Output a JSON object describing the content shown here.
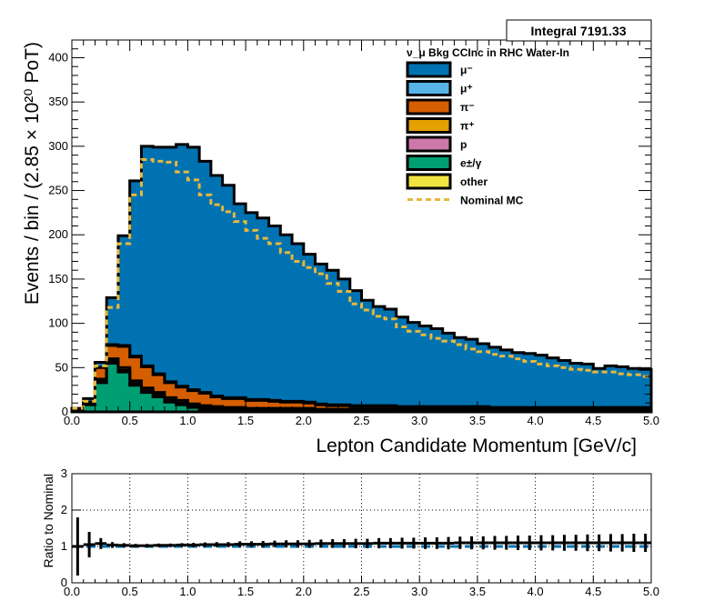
{
  "stats_box": {
    "text": "Integral 7191.33"
  },
  "chart_data": [
    {
      "type": "area",
      "title": "",
      "xlabel": "Lepton Candidate Momentum [GeV/c]",
      "ylabel": "Events / bin / (2.85  × 10²⁰ PoT)",
      "xlim": [
        0,
        5.0
      ],
      "ylim": [
        0,
        420
      ],
      "x_ticks": [
        "0.0",
        "0.5",
        "1.0",
        "1.5",
        "2.0",
        "2.5",
        "3.0",
        "3.5",
        "4.0",
        "4.5",
        "5.0"
      ],
      "y_ticks": [
        "0",
        "50",
        "100",
        "150",
        "200",
        "250",
        "300",
        "350",
        "400"
      ],
      "grid": false,
      "legend_position": "top-right",
      "legend_title": "ν_μ Bkg CCInc in RHC Water-In",
      "bin_width": 0.1,
      "x": [
        0.0,
        0.1,
        0.2,
        0.3,
        0.4,
        0.5,
        0.6,
        0.7,
        0.8,
        0.9,
        1.0,
        1.1,
        1.2,
        1.3,
        1.4,
        1.5,
        1.6,
        1.7,
        1.8,
        1.9,
        2.0,
        2.1,
        2.2,
        2.3,
        2.4,
        2.5,
        2.6,
        2.7,
        2.8,
        2.9,
        3.0,
        3.1,
        3.2,
        3.3,
        3.4,
        3.5,
        3.6,
        3.7,
        3.8,
        3.9,
        4.0,
        4.1,
        4.2,
        4.3,
        4.4,
        4.5,
        4.6,
        4.7,
        4.8,
        4.9
      ],
      "series": [
        {
          "name": "e±/γ",
          "color": "#009e73",
          "values": [
            1,
            8,
            33,
            55,
            45,
            30,
            22,
            17,
            11,
            8,
            5,
            3,
            2,
            1,
            1,
            0,
            0,
            0,
            0,
            0,
            0,
            0,
            0,
            0,
            0,
            0,
            0,
            0,
            0,
            0,
            0,
            0,
            0,
            0,
            0,
            0,
            0,
            0,
            0,
            0,
            0,
            0,
            0,
            0,
            0,
            0,
            0,
            0,
            0,
            0
          ]
        },
        {
          "name": "other",
          "color": "#f0e442",
          "values": [
            0,
            0,
            1,
            1,
            1,
            1,
            1,
            1,
            1,
            1,
            1,
            1,
            1,
            1,
            1,
            1,
            1,
            1,
            1,
            1,
            1,
            1,
            1,
            1,
            1,
            1,
            1,
            1,
            1,
            1,
            1,
            1,
            1,
            1,
            1,
            1,
            1,
            1,
            1,
            1,
            1,
            1,
            1,
            1,
            1,
            1,
            1,
            1,
            1,
            1
          ]
        },
        {
          "name": "p",
          "color": "#cc79a7",
          "values": [
            0,
            0,
            1,
            1,
            1,
            1,
            1,
            1,
            1,
            1,
            1,
            1,
            1,
            1,
            1,
            1,
            1,
            1,
            1,
            1,
            1,
            1,
            1,
            1,
            1,
            1,
            1,
            1,
            1,
            1,
            1,
            1,
            1,
            1,
            1,
            1,
            1,
            1,
            1,
            1,
            1,
            1,
            1,
            1,
            1,
            1,
            1,
            1,
            1,
            1
          ]
        },
        {
          "name": "π⁺",
          "color": "#e69f00",
          "values": [
            0,
            1,
            2,
            3,
            3,
            3,
            3,
            3,
            3,
            3,
            2,
            2,
            2,
            2,
            2,
            2,
            2,
            2,
            2,
            2,
            2,
            1,
            1,
            1,
            1,
            1,
            1,
            1,
            1,
            1,
            1,
            1,
            1,
            1,
            1,
            1,
            1,
            1,
            1,
            1,
            1,
            1,
            1,
            1,
            1,
            1,
            1,
            1,
            1,
            1
          ]
        },
        {
          "name": "π⁻",
          "color": "#d55e00",
          "values": [
            0,
            2,
            13,
            15,
            24,
            27,
            24,
            20,
            17,
            15,
            15,
            14,
            11,
            10,
            10,
            9,
            9,
            8,
            7,
            7,
            6,
            5,
            4,
            4,
            3,
            3,
            3,
            3,
            2,
            2,
            2,
            2,
            2,
            2,
            2,
            2,
            1,
            1,
            1,
            1,
            1,
            1,
            1,
            1,
            1,
            1,
            1,
            1,
            1,
            1
          ]
        },
        {
          "name": "μ⁺",
          "color": "#56b4e9",
          "values": [
            0,
            0,
            0,
            1,
            1,
            1,
            1,
            1,
            1,
            1,
            1,
            1,
            1,
            1,
            1,
            1,
            1,
            1,
            1,
            1,
            1,
            1,
            1,
            1,
            1,
            1,
            1,
            1,
            1,
            1,
            1,
            1,
            1,
            1,
            1,
            1,
            1,
            1,
            1,
            1,
            1,
            1,
            1,
            1,
            1,
            1,
            1,
            1,
            1,
            1
          ]
        },
        {
          "name": "μ⁻",
          "color": "#0072b2",
          "values": [
            3,
            4,
            6,
            53,
            124,
            198,
            248,
            256,
            265,
            273,
            274,
            261,
            249,
            240,
            219,
            211,
            205,
            197,
            188,
            178,
            167,
            158,
            152,
            142,
            130,
            119,
            112,
            109,
            101,
            95,
            91,
            88,
            83,
            78,
            76,
            71,
            68,
            65,
            62,
            61,
            59,
            56,
            53,
            50,
            49,
            44,
            47,
            46,
            44,
            43
          ]
        }
      ],
      "nominal_mc": {
        "name": "Nominal MC",
        "color": "#e6b83c",
        "values": [
          4,
          12,
          52,
          118,
          190,
          245,
          285,
          283,
          282,
          271,
          262,
          245,
          234,
          226,
          215,
          205,
          196,
          190,
          180,
          170,
          163,
          156,
          145,
          136,
          122,
          115,
          108,
          105,
          96,
          91,
          87,
          83,
          80,
          76,
          71,
          68,
          65,
          63,
          60,
          57,
          54,
          52,
          50,
          48,
          47,
          45,
          45,
          43,
          42,
          40
        ]
      }
    },
    {
      "type": "scatter",
      "title": "",
      "xlabel": "",
      "ylabel": "Ratio to Nominal",
      "xlim": [
        0,
        5.0
      ],
      "ylim": [
        0,
        3
      ],
      "x_ticks": [
        "0.0",
        "0.5",
        "1.0",
        "1.5",
        "2.0",
        "2.5",
        "3.0",
        "3.5",
        "4.0",
        "4.5",
        "5.0"
      ],
      "y_ticks": [
        "0",
        "1",
        "2",
        "3"
      ],
      "grid": true,
      "reference_line": {
        "y": 1.0,
        "color": "#0072b2"
      },
      "x": [
        0.05,
        0.15,
        0.25,
        0.35,
        0.45,
        0.55,
        0.65,
        0.75,
        0.85,
        0.95,
        1.05,
        1.15,
        1.25,
        1.35,
        1.45,
        1.55,
        1.65,
        1.75,
        1.85,
        1.95,
        2.05,
        2.15,
        2.25,
        2.35,
        2.45,
        2.55,
        2.65,
        2.75,
        2.85,
        2.95,
        3.05,
        3.15,
        3.25,
        3.35,
        3.45,
        3.55,
        3.65,
        3.75,
        3.85,
        3.95,
        4.05,
        4.15,
        4.25,
        4.35,
        4.45,
        4.55,
        4.65,
        4.75,
        4.85,
        4.95
      ],
      "values": [
        1.0,
        1.05,
        1.08,
        1.04,
        1.03,
        1.02,
        1.02,
        1.03,
        1.03,
        1.04,
        1.04,
        1.05,
        1.05,
        1.05,
        1.06,
        1.06,
        1.06,
        1.07,
        1.07,
        1.07,
        1.07,
        1.08,
        1.08,
        1.08,
        1.08,
        1.08,
        1.09,
        1.09,
        1.09,
        1.09,
        1.09,
        1.09,
        1.09,
        1.1,
        1.1,
        1.1,
        1.1,
        1.1,
        1.1,
        1.1,
        1.1,
        1.1,
        1.1,
        1.1,
        1.1,
        1.1,
        1.1,
        1.1,
        1.1,
        1.1
      ],
      "errors": [
        0.8,
        0.35,
        0.15,
        0.08,
        0.06,
        0.05,
        0.05,
        0.05,
        0.05,
        0.05,
        0.06,
        0.06,
        0.07,
        0.07,
        0.08,
        0.08,
        0.09,
        0.09,
        0.1,
        0.1,
        0.11,
        0.11,
        0.12,
        0.12,
        0.13,
        0.13,
        0.14,
        0.14,
        0.15,
        0.15,
        0.16,
        0.16,
        0.17,
        0.17,
        0.18,
        0.18,
        0.19,
        0.19,
        0.2,
        0.2,
        0.21,
        0.21,
        0.22,
        0.22,
        0.23,
        0.23,
        0.24,
        0.24,
        0.25,
        0.25
      ]
    }
  ]
}
